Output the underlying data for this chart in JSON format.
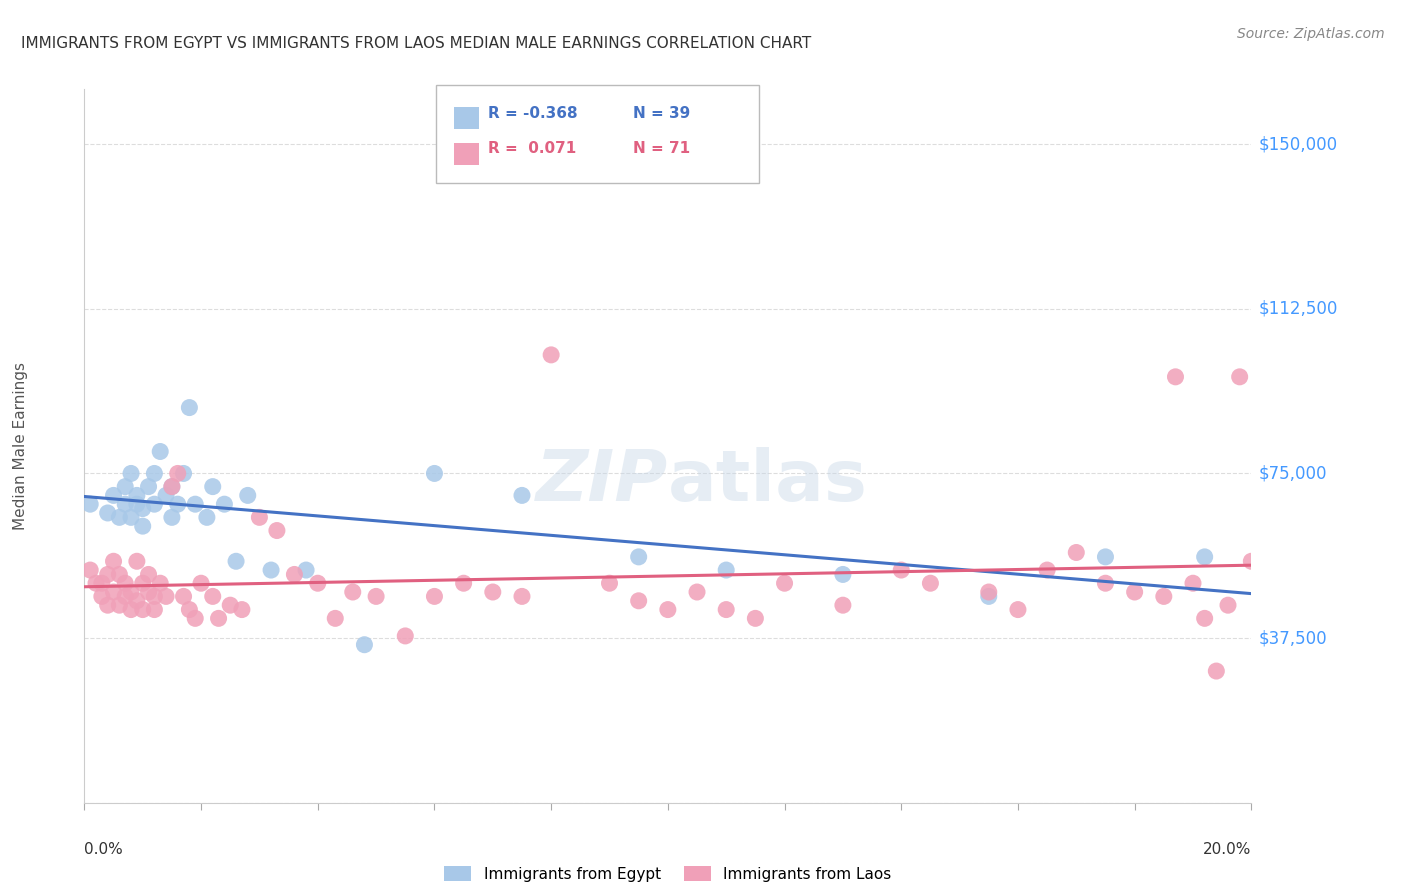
{
  "title": "IMMIGRANTS FROM EGYPT VS IMMIGRANTS FROM LAOS MEDIAN MALE EARNINGS CORRELATION CHART",
  "source": "Source: ZipAtlas.com",
  "ylabel": "Median Male Earnings",
  "xlim": [
    0.0,
    0.2
  ],
  "ylim": [
    0,
    162500
  ],
  "yticks": [
    0,
    37500,
    75000,
    112500,
    150000
  ],
  "ytick_labels": [
    "",
    "$37,500",
    "$75,000",
    "$112,500",
    "$150,000"
  ],
  "egypt_color": "#a8c8e8",
  "laos_color": "#f0a0b8",
  "egypt_line_color": "#4472c4",
  "laos_line_color": "#e06080",
  "legend_egypt_r": "-0.368",
  "legend_egypt_n": "39",
  "legend_laos_r": "0.071",
  "legend_laos_n": "71",
  "legend_label_egypt": "Immigrants from Egypt",
  "legend_label_laos": "Immigrants from Laos",
  "background_color": "#ffffff",
  "grid_color": "#dddddd",
  "egypt_x": [
    0.001,
    0.004,
    0.005,
    0.006,
    0.007,
    0.007,
    0.008,
    0.008,
    0.009,
    0.009,
    0.01,
    0.01,
    0.011,
    0.012,
    0.012,
    0.013,
    0.014,
    0.015,
    0.015,
    0.016,
    0.017,
    0.018,
    0.019,
    0.021,
    0.022,
    0.024,
    0.026,
    0.028,
    0.032,
    0.038,
    0.048,
    0.06,
    0.075,
    0.095,
    0.11,
    0.13,
    0.155,
    0.175,
    0.192
  ],
  "egypt_y": [
    68000,
    66000,
    70000,
    65000,
    68000,
    72000,
    75000,
    65000,
    68000,
    70000,
    63000,
    67000,
    72000,
    68000,
    75000,
    80000,
    70000,
    72000,
    65000,
    68000,
    75000,
    90000,
    68000,
    65000,
    72000,
    68000,
    55000,
    70000,
    53000,
    53000,
    36000,
    75000,
    70000,
    56000,
    53000,
    52000,
    47000,
    56000,
    56000
  ],
  "laos_x": [
    0.001,
    0.002,
    0.003,
    0.003,
    0.004,
    0.004,
    0.005,
    0.005,
    0.006,
    0.006,
    0.007,
    0.007,
    0.008,
    0.008,
    0.009,
    0.009,
    0.01,
    0.01,
    0.011,
    0.011,
    0.012,
    0.012,
    0.013,
    0.014,
    0.015,
    0.016,
    0.017,
    0.018,
    0.019,
    0.02,
    0.022,
    0.023,
    0.025,
    0.027,
    0.03,
    0.033,
    0.036,
    0.04,
    0.043,
    0.046,
    0.05,
    0.055,
    0.06,
    0.065,
    0.07,
    0.075,
    0.08,
    0.09,
    0.095,
    0.1,
    0.105,
    0.11,
    0.115,
    0.12,
    0.13,
    0.14,
    0.145,
    0.155,
    0.16,
    0.165,
    0.17,
    0.175,
    0.18,
    0.185,
    0.187,
    0.19,
    0.192,
    0.194,
    0.196,
    0.198,
    0.2
  ],
  "laos_y": [
    53000,
    50000,
    50000,
    47000,
    52000,
    45000,
    55000,
    48000,
    52000,
    45000,
    50000,
    47000,
    48000,
    44000,
    55000,
    46000,
    50000,
    44000,
    52000,
    48000,
    47000,
    44000,
    50000,
    47000,
    72000,
    75000,
    47000,
    44000,
    42000,
    50000,
    47000,
    42000,
    45000,
    44000,
    65000,
    62000,
    52000,
    50000,
    42000,
    48000,
    47000,
    38000,
    47000,
    50000,
    48000,
    47000,
    102000,
    50000,
    46000,
    44000,
    48000,
    44000,
    42000,
    50000,
    45000,
    53000,
    50000,
    48000,
    44000,
    53000,
    57000,
    50000,
    48000,
    47000,
    97000,
    50000,
    42000,
    30000,
    45000,
    97000,
    55000
  ]
}
